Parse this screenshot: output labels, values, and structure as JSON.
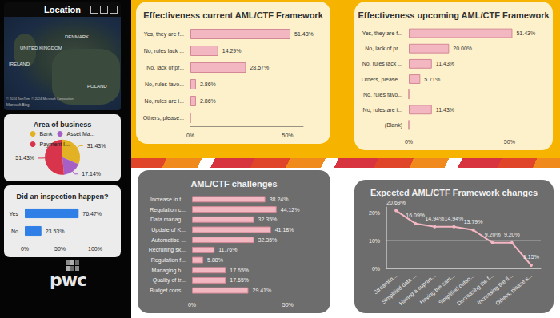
{
  "chart_data": [
    {
      "type": "map",
      "title": "Location",
      "labels": [
        "UNITED KINGDOM",
        "IRELAND",
        "DENMARK",
        "POLAND",
        "© 2024 TomTom, © 2024 Microsoft Corporation",
        "Microsoft Bing"
      ]
    },
    {
      "type": "pie",
      "title": "Area of business",
      "categories": [
        "Bank",
        "Asset Ma...",
        "Payment I..."
      ],
      "values": [
        31.43,
        17.14,
        51.43
      ],
      "value_labels": [
        "31.43%",
        "17.14%",
        "51.43%"
      ],
      "colors": [
        "#e3b224",
        "#a65fc4",
        "#d8344c"
      ],
      "legend": "top",
      "data_labels": true
    },
    {
      "type": "bar",
      "title": "Did an inspection happen?",
      "orientation": "horizontal",
      "categories": [
        "Yes",
        "No"
      ],
      "values": [
        76.47,
        23.53
      ],
      "value_labels": [
        "76.47%",
        "23.53%"
      ],
      "color": "#2f7fe6",
      "xlim": [
        0,
        100
      ],
      "xticks": [
        {
          "value": 0,
          "label": "0%"
        },
        {
          "value": 50,
          "label": "50%"
        },
        {
          "value": 100,
          "label": "100%"
        }
      ],
      "grid": false,
      "data_labels": true
    },
    {
      "type": "bar",
      "title": "Effectiveness current AML/CTF Framework",
      "orientation": "horizontal",
      "categories": [
        "Yes, they are f...",
        "No, rules lack ...",
        "No, lack of pr...",
        "No, rules favo...",
        "No, rules are i...",
        "Others, please..."
      ],
      "values": [
        51.43,
        14.29,
        28.57,
        2.86,
        2.86,
        0
      ],
      "value_labels": [
        "51.43%",
        "14.29%",
        "28.57%",
        "2.86%",
        "2.86%",
        null
      ],
      "color": "#f2b7c0",
      "xlim": [
        0,
        58
      ],
      "xticks": [
        {
          "value": 0,
          "label": "0%"
        },
        {
          "value": 50,
          "label": "50%"
        }
      ],
      "grid": false,
      "data_labels": true
    },
    {
      "type": "bar",
      "title": "Effectiveness upcoming AML/CTF Framework",
      "orientation": "horizontal",
      "categories": [
        "Yes, they are f...",
        "No, lack of pr...",
        "No, rules lack ...",
        "Others, please...",
        "No, rules favo...",
        "No, rules are i...",
        "(Blank)"
      ],
      "values": [
        51.43,
        20.0,
        11.43,
        5.71,
        0,
        11.43,
        0
      ],
      "value_labels": [
        "51.43%",
        "20.00%",
        "11.43%",
        "5.71%",
        null,
        "11.43%",
        null
      ],
      "color": "#f2b7c0",
      "xlim": [
        0,
        58
      ],
      "xticks": [
        {
          "value": 0,
          "label": "0%"
        },
        {
          "value": 50,
          "label": "50%"
        }
      ],
      "grid": false,
      "data_labels": true
    },
    {
      "type": "bar",
      "title": "AML/CTF challenges",
      "orientation": "horizontal",
      "categories": [
        "Increase in t...",
        "Regulation c...",
        "Data manag...",
        "Update of K...",
        "Automatise ...",
        "Recruiting sk...",
        "Regulation f...",
        "Managing b...",
        "Quality of tr...",
        "Budget cons..."
      ],
      "values": [
        38.24,
        44.12,
        32.35,
        41.18,
        32.35,
        11.76,
        5.88,
        17.65,
        17.65,
        29.41
      ],
      "value_labels": [
        "38.24%",
        "44.12%",
        "32.35%",
        "41.18%",
        "32.35%",
        "11.76%",
        "5.88%",
        "17.65%",
        "17.65%",
        "29.41%"
      ],
      "color": "#f2b7c0",
      "xlim": [
        0,
        58
      ],
      "xticks": [
        {
          "value": 0,
          "label": "0%"
        },
        {
          "value": 50,
          "label": "50%"
        }
      ],
      "grid": false,
      "data_labels": true
    },
    {
      "type": "line",
      "title": "Expected AML/CTF Framework changes",
      "categories": [
        "Streamlin...",
        "Simplified data ...",
        "Having a supran...",
        "Having the sam...",
        "Simplified outso...",
        "Decreasing the f...",
        "Increasing the fl...",
        "Others, please s..."
      ],
      "values": [
        20.69,
        16.09,
        14.94,
        14.94,
        13.79,
        9.2,
        9.2,
        1.15
      ],
      "value_labels": [
        "20.69%",
        "16.09%",
        "14.94%",
        "14.94%",
        "13.79%",
        "9.20%",
        "9.20%",
        "1.15%"
      ],
      "color": "#f5b7c3",
      "marker": "circle",
      "line_style": "solid",
      "ylim": [
        0,
        22
      ],
      "yticks": [
        {
          "value": 0,
          "label": "0%"
        },
        {
          "value": 10,
          "label": "10%"
        },
        {
          "value": 20,
          "label": "20%"
        }
      ],
      "grid": true,
      "data_labels": true
    }
  ],
  "logo": "pwc"
}
